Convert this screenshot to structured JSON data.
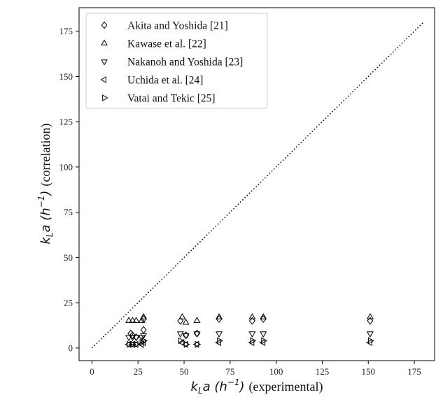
{
  "chart_data": {
    "type": "scatter",
    "title": "",
    "xlabel": {
      "math": "k_L a (h^{-1})",
      "text": "(experimental)"
    },
    "ylabel": {
      "math": "k_L a (h^{-1})",
      "text": "(correlation)"
    },
    "xlim": [
      -7,
      186
    ],
    "ylim": [
      -7,
      188
    ],
    "xticks": [
      0,
      25,
      50,
      75,
      100,
      125,
      150,
      175
    ],
    "yticks": [
      0,
      25,
      50,
      75,
      100,
      125,
      150,
      175
    ],
    "grid": false,
    "legend_position": "top-left",
    "parity_line": {
      "x": [
        0,
        180
      ],
      "y": [
        0,
        180
      ],
      "style": "dotted"
    },
    "series": [
      {
        "name": "Akita and Yoshida [21]",
        "marker": "diamond",
        "x": [
          21,
          22,
          24,
          28,
          28,
          48,
          51,
          57,
          69,
          87,
          93,
          151
        ],
        "y": [
          8,
          7,
          6,
          10,
          16,
          15,
          7,
          8,
          16,
          15,
          16,
          15
        ]
      },
      {
        "name": "Kawase et al. [22]",
        "marker": "triangle-up",
        "x": [
          20,
          22,
          24,
          27,
          28,
          49,
          51,
          57,
          69,
          87,
          93,
          151
        ],
        "y": [
          15,
          15,
          15,
          15,
          17,
          17,
          14,
          15,
          17,
          17,
          17,
          17
        ]
      },
      {
        "name": "Nakanoh and Yoshida [23]",
        "marker": "triangle-down",
        "x": [
          20,
          22,
          24,
          27,
          28,
          48,
          51,
          57,
          69,
          87,
          93,
          151
        ],
        "y": [
          6,
          6,
          6,
          6,
          7,
          8,
          7,
          8,
          8,
          8,
          8,
          8
        ]
      },
      {
        "name": "Uchida et al. [24]",
        "marker": "triangle-left",
        "x": [
          20,
          22,
          24,
          27,
          28,
          49,
          51,
          57,
          69,
          87,
          93,
          151
        ],
        "y": [
          2,
          2,
          2,
          2,
          3,
          3,
          2,
          2,
          3,
          3,
          3,
          3
        ]
      },
      {
        "name": "Vatai and Tekic [25]",
        "marker": "triangle-right",
        "x": [
          20,
          22,
          24,
          27,
          28,
          48,
          51,
          57,
          69,
          87,
          93,
          151
        ],
        "y": [
          2,
          2,
          2,
          3,
          4,
          4,
          2,
          2,
          4,
          4,
          4,
          4
        ]
      }
    ]
  }
}
